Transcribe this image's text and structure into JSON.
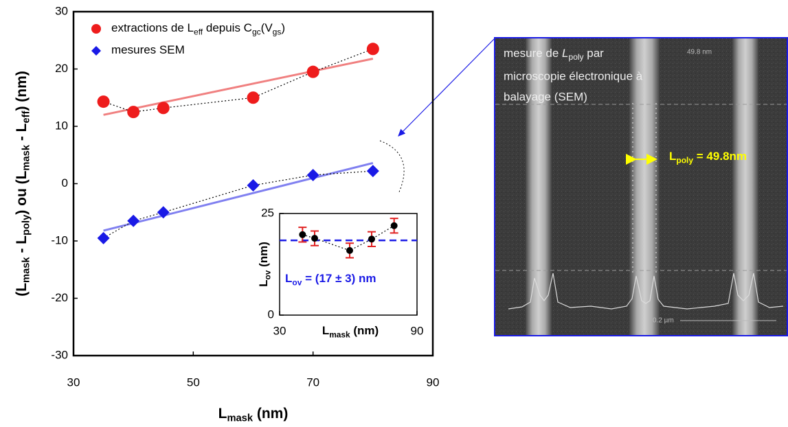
{
  "chart_data": [
    {
      "type": "scatter",
      "xlabel": [
        "L",
        "mask",
        " (nm)"
      ],
      "ylabel": [
        "(L",
        "mask",
        " - L",
        "poly",
        ") ou (L",
        "mask",
        " - L",
        "eff",
        ") (nm)"
      ],
      "xlim": [
        30,
        90
      ],
      "ylim": [
        -30,
        30
      ],
      "xticks": [
        30,
        50,
        70,
        90
      ],
      "yticks": [
        -30,
        -20,
        -10,
        0,
        10,
        20,
        30
      ],
      "series": [
        {
          "name": [
            "extractions de L",
            "eff",
            " depuis C",
            "gc",
            "(V",
            "gs",
            ")"
          ],
          "marker": "circle",
          "color": "#ee1c1c",
          "fit_color": "#f08080",
          "x": [
            35,
            40,
            45,
            60,
            70,
            80
          ],
          "values": [
            14.3,
            12.5,
            13.2,
            15,
            19.5,
            23.5
          ],
          "fit": {
            "x": [
              35,
              80
            ],
            "values": [
              12,
              21.8
            ]
          }
        },
        {
          "name": [
            "mesures SEM"
          ],
          "marker": "diamond",
          "color": "#1a1ae6",
          "fit_color": "#8080f0",
          "x": [
            35,
            40,
            45,
            60,
            70,
            80
          ],
          "values": [
            -9.5,
            -6.5,
            -5,
            -0.3,
            1.5,
            2.2
          ],
          "fit": {
            "x": [
              35,
              80
            ],
            "values": [
              -8.2,
              3.6
            ]
          }
        }
      ]
    },
    {
      "type": "scatter",
      "xlabel": [
        "L",
        "mask",
        " (nm)"
      ],
      "ylabel": [
        "L",
        "ov",
        " (nm)"
      ],
      "annotation": [
        "L",
        "ov",
        " = (17 ± 3) nm"
      ],
      "xlim": [
        30,
        90
      ],
      "ylim": [
        0,
        25
      ],
      "xticks": [
        30,
        90
      ],
      "yticks": [
        0,
        25
      ],
      "reference": {
        "value": 18.4,
        "color": "#1a1ae6"
      },
      "series": [
        {
          "marker": "circle",
          "color": "#000000",
          "error_color": "#e02020",
          "x": [
            40,
            45.3,
            60.6,
            70.2,
            80
          ],
          "values": [
            19.8,
            18.9,
            15.9,
            18.7,
            22
          ],
          "errors": [
            1.8,
            1.8,
            1.8,
            1.8,
            1.8
          ]
        }
      ]
    }
  ],
  "sem_image": {
    "caption": [
      "mesure de ",
      "L",
      "poly",
      " par",
      "microscopie électronique à",
      "balayage (SEM)"
    ],
    "corner_label": "49.8 nm",
    "measurement": [
      "L",
      "poly",
      " = 49.8nm"
    ],
    "scale_label": "0.2 µm"
  }
}
